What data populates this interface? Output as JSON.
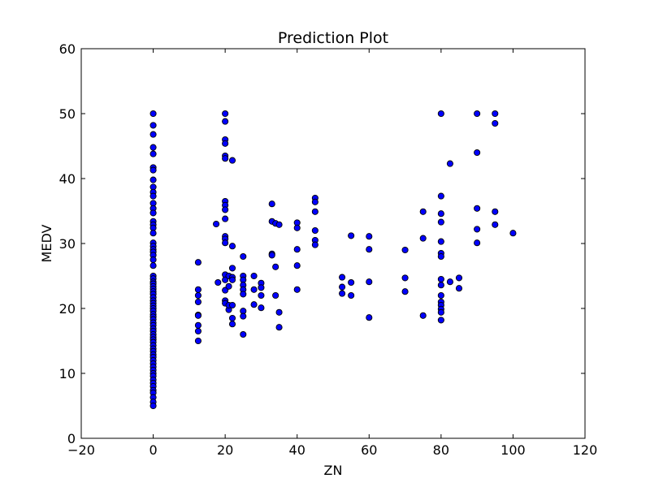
{
  "chart_data": {
    "type": "scatter",
    "title": "Prediction Plot",
    "xlabel": "ZN",
    "ylabel": "MEDV",
    "xlim": [
      -20,
      120
    ],
    "ylim": [
      0,
      60
    ],
    "xticks": [
      -20,
      0,
      20,
      40,
      60,
      80,
      100,
      120
    ],
    "yticks": [
      0,
      10,
      20,
      30,
      40,
      50,
      60
    ],
    "xtick_labels": [
      "−20",
      "0",
      "20",
      "40",
      "60",
      "80",
      "100",
      "120"
    ],
    "ytick_labels": [
      "0",
      "10",
      "20",
      "30",
      "40",
      "50",
      "60"
    ],
    "grid": false,
    "marker_color": "#0000ff",
    "marker_edge_color": "#000000",
    "points": [
      [
        0,
        50
      ],
      [
        0,
        48.2
      ],
      [
        0,
        46.8
      ],
      [
        0,
        44.8
      ],
      [
        0,
        43.8
      ],
      [
        0,
        41.7
      ],
      [
        0,
        41.3
      ],
      [
        0,
        39.8
      ],
      [
        0,
        38.7
      ],
      [
        0,
        37.9
      ],
      [
        0,
        37.3
      ],
      [
        0,
        36.2
      ],
      [
        0,
        35.4
      ],
      [
        0,
        34.7
      ],
      [
        0,
        33.4
      ],
      [
        0,
        32.9
      ],
      [
        0,
        32.4
      ],
      [
        0,
        31.6
      ],
      [
        0,
        30.1
      ],
      [
        0,
        29.6
      ],
      [
        0,
        29.1
      ],
      [
        0,
        28.7
      ],
      [
        0,
        28.2
      ],
      [
        0,
        27.5
      ],
      [
        0,
        26.6
      ],
      [
        0,
        25.0
      ],
      [
        0,
        24.6
      ],
      [
        0,
        24.1
      ],
      [
        0,
        23.8
      ],
      [
        0,
        23.4
      ],
      [
        0,
        23.0
      ],
      [
        0,
        22.6
      ],
      [
        0,
        22.2
      ],
      [
        0,
        21.7
      ],
      [
        0,
        21.2
      ],
      [
        0,
        20.8
      ],
      [
        0,
        20.4
      ],
      [
        0,
        20.0
      ],
      [
        0,
        19.6
      ],
      [
        0,
        19.1
      ],
      [
        0,
        18.7
      ],
      [
        0,
        18.3
      ],
      [
        0,
        17.8
      ],
      [
        0,
        17.4
      ],
      [
        0,
        16.9
      ],
      [
        0,
        16.5
      ],
      [
        0,
        16.0
      ],
      [
        0,
        15.6
      ],
      [
        0,
        15.2
      ],
      [
        0,
        14.8
      ],
      [
        0,
        14.3
      ],
      [
        0,
        13.8
      ],
      [
        0,
        13.4
      ],
      [
        0,
        12.9
      ],
      [
        0,
        12.5
      ],
      [
        0,
        12.0
      ],
      [
        0,
        11.5
      ],
      [
        0,
        11.0
      ],
      [
        0,
        10.5
      ],
      [
        0,
        10.0
      ],
      [
        0,
        9.6
      ],
      [
        0,
        9.0
      ],
      [
        0,
        8.5
      ],
      [
        0,
        8.0
      ],
      [
        0,
        7.4
      ],
      [
        0,
        7.0
      ],
      [
        0,
        6.3
      ],
      [
        0,
        5.6
      ],
      [
        0,
        5.0
      ],
      [
        12.5,
        27.1
      ],
      [
        12.5,
        22.9
      ],
      [
        12.5,
        22.0
      ],
      [
        12.5,
        21.0
      ],
      [
        12.5,
        19.0
      ],
      [
        12.5,
        18.9
      ],
      [
        12.5,
        17.4
      ],
      [
        12.5,
        16.5
      ],
      [
        12.5,
        15.0
      ],
      [
        17.5,
        33.0
      ],
      [
        18,
        24.0
      ],
      [
        20,
        50.0
      ],
      [
        20,
        48.8
      ],
      [
        20,
        46.0
      ],
      [
        20,
        45.4
      ],
      [
        20,
        43.5
      ],
      [
        20,
        43.1
      ],
      [
        20,
        36.5
      ],
      [
        20,
        35.9
      ],
      [
        20,
        35.2
      ],
      [
        20,
        33.8
      ],
      [
        20,
        31.1
      ],
      [
        20,
        30.7
      ],
      [
        20,
        30.1
      ],
      [
        20,
        25.2
      ],
      [
        20,
        24.4
      ],
      [
        20,
        22.8
      ],
      [
        20,
        21.2
      ],
      [
        20,
        20.8
      ],
      [
        21,
        25.0
      ],
      [
        21,
        23.4
      ],
      [
        21,
        19.8
      ],
      [
        21,
        20.5
      ],
      [
        22,
        42.8
      ],
      [
        22,
        29.6
      ],
      [
        22,
        26.2
      ],
      [
        22,
        24.8
      ],
      [
        22,
        24.4
      ],
      [
        22,
        20.5
      ],
      [
        22,
        18.5
      ],
      [
        22,
        17.6
      ],
      [
        25,
        28.0
      ],
      [
        25,
        25.0
      ],
      [
        25,
        24.4
      ],
      [
        25,
        23.6
      ],
      [
        25,
        22.9
      ],
      [
        25,
        22.2
      ],
      [
        25,
        19.6
      ],
      [
        25,
        18.8
      ],
      [
        25,
        16.0
      ],
      [
        28,
        25.0
      ],
      [
        28,
        22.9
      ],
      [
        28,
        20.6
      ],
      [
        30,
        23.9
      ],
      [
        30,
        23.2
      ],
      [
        30,
        22.0
      ],
      [
        30,
        20.1
      ],
      [
        33,
        36.1
      ],
      [
        33,
        33.4
      ],
      [
        33,
        28.4
      ],
      [
        33,
        28.2
      ],
      [
        34,
        33.1
      ],
      [
        34,
        26.4
      ],
      [
        34,
        22.0
      ],
      [
        35,
        32.9
      ],
      [
        35,
        19.4
      ],
      [
        35,
        17.1
      ],
      [
        40,
        33.2
      ],
      [
        40,
        32.4
      ],
      [
        40,
        29.1
      ],
      [
        40,
        26.6
      ],
      [
        40,
        22.9
      ],
      [
        45,
        37.0
      ],
      [
        45,
        36.4
      ],
      [
        45,
        34.9
      ],
      [
        45,
        32.0
      ],
      [
        45,
        30.5
      ],
      [
        45,
        29.8
      ],
      [
        52.5,
        24.8
      ],
      [
        52.5,
        23.3
      ],
      [
        52.5,
        22.3
      ],
      [
        55,
        31.2
      ],
      [
        55,
        24.0
      ],
      [
        55,
        22.0
      ],
      [
        60,
        31.1
      ],
      [
        60,
        29.1
      ],
      [
        60,
        24.1
      ],
      [
        60,
        18.6
      ],
      [
        70,
        29.0
      ],
      [
        70,
        24.7
      ],
      [
        70,
        22.6
      ],
      [
        75,
        34.9
      ],
      [
        75,
        30.8
      ],
      [
        75,
        18.9
      ],
      [
        80,
        50.0
      ],
      [
        80,
        37.3
      ],
      [
        80,
        34.6
      ],
      [
        80,
        33.3
      ],
      [
        80,
        30.3
      ],
      [
        80,
        28.5
      ],
      [
        80,
        28.0
      ],
      [
        80,
        24.5
      ],
      [
        80,
        23.6
      ],
      [
        80,
        22.0
      ],
      [
        80,
        21.0
      ],
      [
        80,
        20.5
      ],
      [
        80,
        19.9
      ],
      [
        80,
        19.4
      ],
      [
        80,
        18.2
      ],
      [
        82.5,
        42.3
      ],
      [
        82.5,
        24.1
      ],
      [
        85,
        24.7
      ],
      [
        85,
        23.1
      ],
      [
        90,
        50.0
      ],
      [
        90,
        44.0
      ],
      [
        90,
        35.4
      ],
      [
        90,
        32.2
      ],
      [
        90,
        30.1
      ],
      [
        95,
        50.0
      ],
      [
        95,
        48.5
      ],
      [
        95,
        34.9
      ],
      [
        95,
        32.9
      ],
      [
        100,
        31.6
      ]
    ]
  }
}
